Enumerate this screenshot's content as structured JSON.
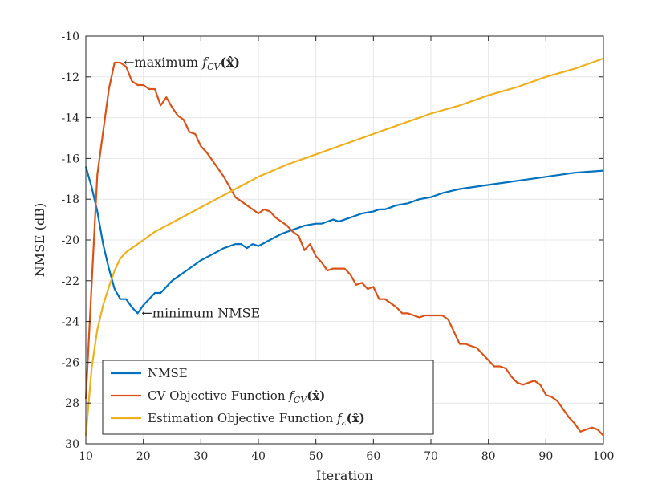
{
  "chart_data": {
    "type": "line",
    "xlabel": "Iteration",
    "ylabel": "NMSE (dB)",
    "xlim": [
      10,
      100
    ],
    "ylim": [
      -30,
      -10
    ],
    "xticks": [
      "10",
      "20",
      "30",
      "40",
      "50",
      "60",
      "70",
      "80",
      "90",
      "100"
    ],
    "yticks": [
      "-10",
      "-12",
      "-14",
      "-16",
      "-18",
      "-20",
      "-22",
      "-24",
      "-26",
      "-28",
      "-30"
    ],
    "grid": true,
    "legend_position": "bottom-left",
    "series": [
      {
        "name": "NMSE",
        "color": "#0072BD",
        "x": [
          10,
          11,
          12,
          13,
          14,
          15,
          16,
          17,
          18,
          19,
          20,
          21,
          22,
          23,
          24,
          25,
          26,
          27,
          28,
          29,
          30,
          32,
          34,
          36,
          37,
          38,
          39,
          40,
          42,
          44,
          46,
          48,
          50,
          51,
          52,
          53,
          54,
          55,
          56,
          58,
          60,
          61,
          62,
          63,
          64,
          66,
          68,
          70,
          72,
          75,
          80,
          85,
          90,
          95,
          100
        ],
        "y": [
          -16.4,
          -17.4,
          -18.6,
          -20.2,
          -21.4,
          -22.4,
          -22.9,
          -22.9,
          -23.3,
          -23.6,
          -23.2,
          -22.9,
          -22.6,
          -22.6,
          -22.3,
          -22.0,
          -21.8,
          -21.6,
          -21.4,
          -21.2,
          -21.0,
          -20.7,
          -20.4,
          -20.2,
          -20.2,
          -20.4,
          -20.2,
          -20.3,
          -20.0,
          -19.7,
          -19.5,
          -19.3,
          -19.2,
          -19.2,
          -19.1,
          -19.0,
          -19.1,
          -19.0,
          -18.9,
          -18.7,
          -18.6,
          -18.5,
          -18.5,
          -18.4,
          -18.3,
          -18.2,
          -18.0,
          -17.9,
          -17.7,
          -17.5,
          -17.3,
          -17.1,
          -16.9,
          -16.7,
          -16.6
        ]
      },
      {
        "name": "CV Objective Function",
        "color": "#D95319",
        "x": [
          10,
          11,
          12,
          13,
          14,
          15,
          16,
          17,
          18,
          19,
          20,
          21,
          22,
          23,
          24,
          25,
          26,
          27,
          28,
          29,
          30,
          31,
          32,
          33,
          34,
          35,
          36,
          37,
          38,
          39,
          40,
          41,
          42,
          43,
          44,
          45,
          46,
          47,
          48,
          49,
          50,
          51,
          52,
          53,
          54,
          55,
          56,
          57,
          58,
          59,
          60,
          61,
          62,
          63,
          64,
          65,
          66,
          67,
          68,
          69,
          70,
          71,
          72,
          73,
          74,
          75,
          76,
          77,
          78,
          79,
          80,
          81,
          82,
          83,
          84,
          85,
          86,
          87,
          88,
          89,
          90,
          91,
          92,
          93,
          94,
          95,
          96,
          97,
          98,
          99,
          100
        ],
        "y": [
          -27.8,
          -22.2,
          -16.8,
          -14.7,
          -12.6,
          -11.3,
          -11.3,
          -11.5,
          -12.2,
          -12.4,
          -12.4,
          -12.6,
          -12.6,
          -13.4,
          -13.0,
          -13.5,
          -13.9,
          -14.1,
          -14.7,
          -14.8,
          -15.4,
          -15.7,
          -16.1,
          -16.5,
          -16.9,
          -17.4,
          -17.9,
          -18.1,
          -18.3,
          -18.5,
          -18.7,
          -18.5,
          -18.6,
          -18.9,
          -19.1,
          -19.3,
          -19.6,
          -19.8,
          -20.5,
          -20.2,
          -20.8,
          -21.1,
          -21.5,
          -21.4,
          -21.4,
          -21.4,
          -21.7,
          -22.2,
          -22.1,
          -22.4,
          -22.3,
          -22.9,
          -22.9,
          -23.1,
          -23.3,
          -23.6,
          -23.6,
          -23.7,
          -23.8,
          -23.7,
          -23.7,
          -23.7,
          -23.7,
          -23.9,
          -24.5,
          -25.1,
          -25.1,
          -25.2,
          -25.3,
          -25.6,
          -25.9,
          -26.2,
          -26.2,
          -26.3,
          -26.7,
          -27.0,
          -27.1,
          -27.0,
          -26.9,
          -27.1,
          -27.6,
          -27.7,
          -27.9,
          -28.3,
          -28.7,
          -29.0,
          -29.4,
          -29.3,
          -29.2,
          -29.3,
          -29.6
        ]
      },
      {
        "name": "Estimation Objective Function",
        "color": "#EDB120",
        "x": [
          10,
          11,
          12,
          13,
          14,
          15,
          16,
          17,
          18,
          19,
          20,
          22,
          24,
          26,
          28,
          30,
          32,
          34,
          36,
          38,
          40,
          45,
          50,
          55,
          60,
          65,
          70,
          75,
          80,
          85,
          90,
          95,
          100
        ],
        "y": [
          -29.6,
          -26.3,
          -24.4,
          -23.2,
          -22.3,
          -21.5,
          -20.9,
          -20.6,
          -20.4,
          -20.2,
          -20.0,
          -19.6,
          -19.3,
          -19.0,
          -18.7,
          -18.4,
          -18.1,
          -17.8,
          -17.5,
          -17.2,
          -16.9,
          -16.3,
          -15.8,
          -15.3,
          -14.8,
          -14.3,
          -13.8,
          -13.4,
          -12.9,
          -12.5,
          -12.0,
          -11.6,
          -11.1
        ]
      }
    ],
    "annotations": [
      {
        "text": "←maximum ",
        "math": "f",
        "sub": "CV",
        "tail": "(x̂)",
        "x": 16.3,
        "y": -11.3
      },
      {
        "text": "←minimum NMSE",
        "x": 19.4,
        "y": -23.6
      }
    ],
    "legend_labels": [
      {
        "name": "NMSE",
        "math": null
      },
      {
        "name": "CV Objective Function ",
        "math": "f",
        "sub": "CV",
        "tail": "(x̂)"
      },
      {
        "name": "Estimation Objective Function ",
        "math": "f",
        "sub": "ε",
        "tail": "(x̂)"
      }
    ]
  }
}
